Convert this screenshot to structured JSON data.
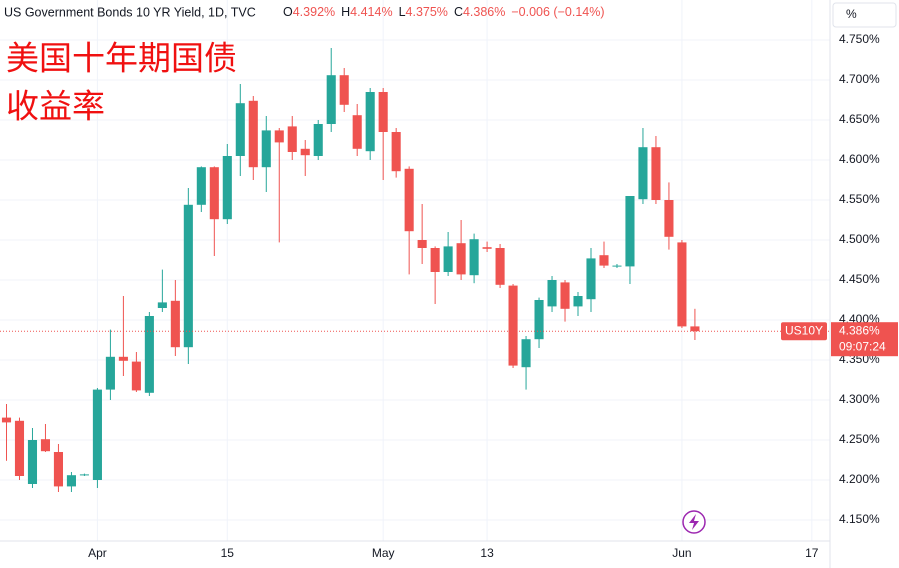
{
  "chart_data": {
    "type": "candlestick",
    "header": {
      "title": "US Government Bonds 10 YR Yield, 1D, TVC",
      "ohlc": [
        {
          "key": "O",
          "text": "4.392%"
        },
        {
          "key": "H",
          "text": "4.414%"
        },
        {
          "key": "L",
          "text": "4.375%"
        },
        {
          "key": "C",
          "text": "4.386%"
        }
      ],
      "change": "−0.006 (−0.14%)"
    },
    "overlay_title": [
      "美国十年期国债",
      "收益率"
    ],
    "unit": "%",
    "up_color": "#26a69a",
    "down_color": "#ef5350",
    "x": [
      0,
      1,
      2,
      3,
      4,
      5,
      6,
      7,
      8,
      9,
      10,
      11,
      12,
      13,
      14,
      15,
      16,
      17,
      18,
      19,
      20,
      21,
      22,
      23,
      24,
      25,
      26,
      27,
      28,
      29,
      30,
      31,
      32,
      33,
      34,
      35,
      36,
      37,
      38,
      39,
      40,
      41,
      42,
      43,
      44,
      45,
      46,
      47,
      48,
      49,
      50,
      51,
      52,
      53
    ],
    "open": [
      4.278,
      4.274,
      4.195,
      4.251,
      4.235,
      4.192,
      4.206,
      4.2,
      4.313,
      4.354,
      4.348,
      4.309,
      4.415,
      4.424,
      4.366,
      4.544,
      4.591,
      4.526,
      4.605,
      4.674,
      4.591,
      4.637,
      4.642,
      4.614,
      4.605,
      4.645,
      4.706,
      4.656,
      4.611,
      4.685,
      4.635,
      4.589,
      4.5,
      4.49,
      4.46,
      4.496,
      4.456,
      4.491,
      4.49,
      4.443,
      4.341,
      4.376,
      4.417,
      4.447,
      4.417,
      4.426,
      4.481,
      4.467,
      4.467,
      4.551,
      4.616,
      4.55,
      4.497,
      4.392
    ],
    "high": [
      4.295,
      4.278,
      4.265,
      4.27,
      4.245,
      4.21,
      4.208,
      4.315,
      4.388,
      4.43,
      4.36,
      4.41,
      4.463,
      4.45,
      4.565,
      4.592,
      4.592,
      4.62,
      4.695,
      4.68,
      4.655,
      4.64,
      4.655,
      4.625,
      4.65,
      4.74,
      4.715,
      4.67,
      4.69,
      4.69,
      4.64,
      4.592,
      4.545,
      4.492,
      4.51,
      4.525,
      4.508,
      4.498,
      4.495,
      4.445,
      4.38,
      4.428,
      4.455,
      4.45,
      4.435,
      4.49,
      4.498,
      4.47,
      4.555,
      4.64,
      4.63,
      4.572,
      4.5,
      4.414
    ],
    "low": [
      4.224,
      4.2,
      4.19,
      4.235,
      4.185,
      4.185,
      4.205,
      4.19,
      4.3,
      4.33,
      4.31,
      4.305,
      4.41,
      4.355,
      4.345,
      4.535,
      4.48,
      4.52,
      4.58,
      4.575,
      4.56,
      4.497,
      4.6,
      4.58,
      4.6,
      4.635,
      4.66,
      4.605,
      4.6,
      4.575,
      4.578,
      4.457,
      4.47,
      4.42,
      4.455,
      4.45,
      4.446,
      4.485,
      4.44,
      4.34,
      4.313,
      4.365,
      4.41,
      4.398,
      4.405,
      4.41,
      4.465,
      4.465,
      4.445,
      4.545,
      4.545,
      4.488,
      4.39,
      4.375
    ],
    "close": [
      4.272,
      4.205,
      4.25,
      4.236,
      4.192,
      4.206,
      4.207,
      4.313,
      4.354,
      4.349,
      4.312,
      4.405,
      4.422,
      4.366,
      4.544,
      4.591,
      4.526,
      4.605,
      4.671,
      4.591,
      4.637,
      4.622,
      4.61,
      4.606,
      4.645,
      4.706,
      4.669,
      4.614,
      4.685,
      4.635,
      4.586,
      4.511,
      4.49,
      4.46,
      4.492,
      4.457,
      4.501,
      4.489,
      4.444,
      4.343,
      4.376,
      4.425,
      4.45,
      4.414,
      4.43,
      4.477,
      4.468,
      4.468,
      4.555,
      4.616,
      4.55,
      4.504,
      4.392,
      4.386
    ],
    "xlim": [
      -0.5,
      63.4
    ],
    "xticks": [
      {
        "value": 7,
        "label": "Apr"
      },
      {
        "value": 17,
        "label": "15"
      },
      {
        "value": 29,
        "label": "May"
      },
      {
        "value": 37,
        "label": "13"
      },
      {
        "value": 52,
        "label": "Jun"
      },
      {
        "value": 62,
        "label": "17"
      }
    ],
    "ylim": [
      4.125,
      4.8
    ],
    "yticks": [
      {
        "value": 4.15,
        "label": "4.150%"
      },
      {
        "value": 4.2,
        "label": "4.200%"
      },
      {
        "value": 4.25,
        "label": "4.250%"
      },
      {
        "value": 4.3,
        "label": "4.300%"
      },
      {
        "value": 4.35,
        "label": "4.350%"
      },
      {
        "value": 4.4,
        "label": "4.400%"
      },
      {
        "value": 4.45,
        "label": "4.450%"
      },
      {
        "value": 4.5,
        "label": "4.500%"
      },
      {
        "value": 4.55,
        "label": "4.550%"
      },
      {
        "value": 4.6,
        "label": "4.600%"
      },
      {
        "value": 4.65,
        "label": "4.650%"
      },
      {
        "value": 4.7,
        "label": "4.700%"
      },
      {
        "value": 4.75,
        "label": "4.750%"
      }
    ],
    "grid": true,
    "last_price": {
      "value": 4.386,
      "label": "4.386%"
    },
    "symbol": "US10Y",
    "countdown": "09:07:24"
  }
}
